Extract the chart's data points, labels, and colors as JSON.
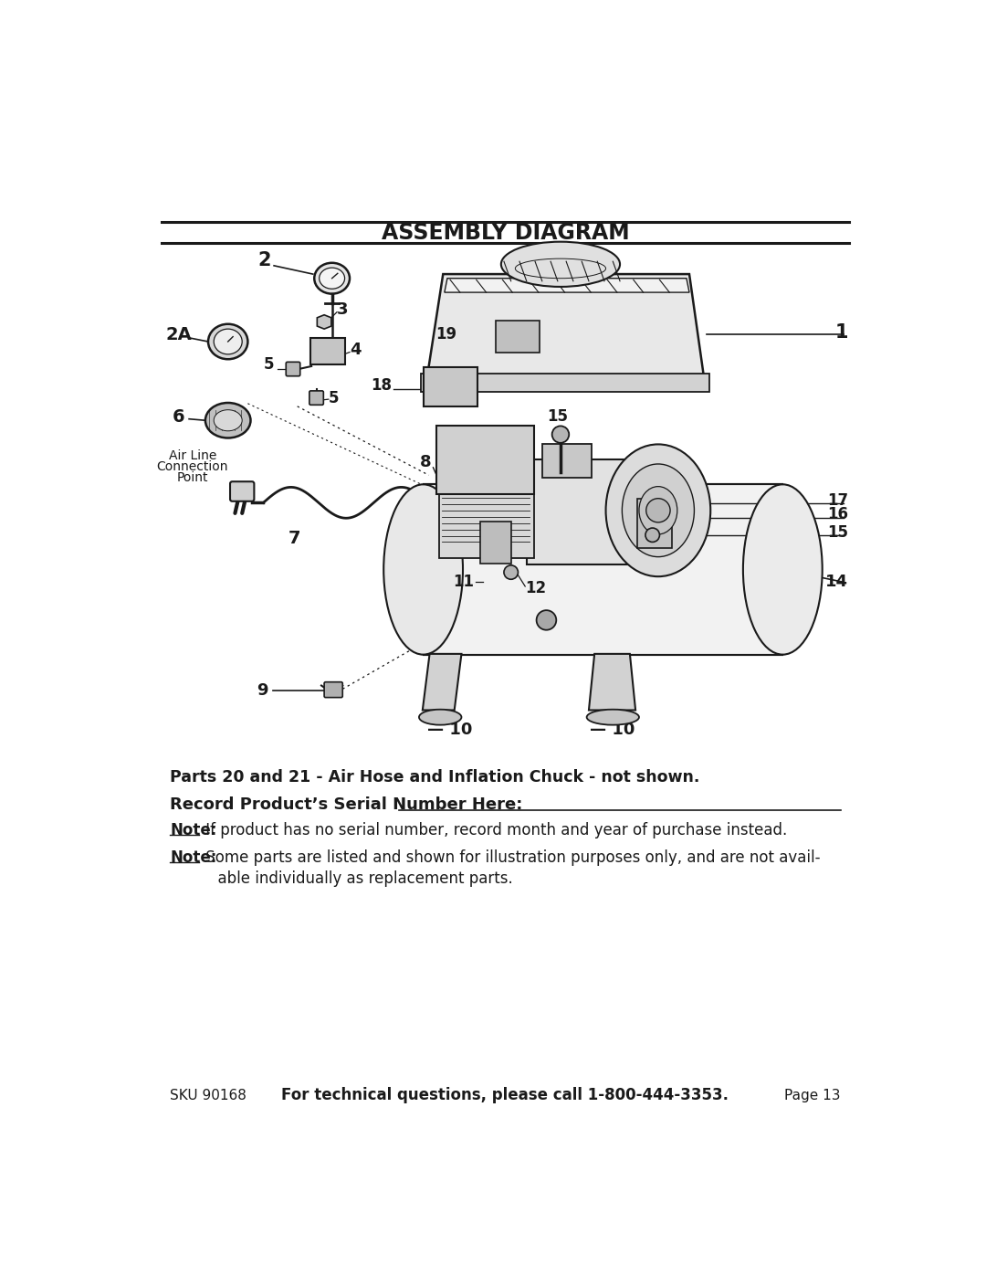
{
  "title": "ASSEMBLY DIAGRAM",
  "bg_color": "#ffffff",
  "tc": "#1a1a1a",
  "footer_sku": "SKU 90168",
  "footer_call": "For technical questions, please call 1-800-444-3353.",
  "footer_page": "Page 13",
  "note1": "Parts 20 and 21 - Air Hose and Inflation Chuck - not shown.",
  "note2_bold": "Record Product’s Serial Number Here:",
  "note3_label": "Note:",
  "note3_body": " If product has no serial number, record month and year of purchase instead.",
  "note4_label": "Note:",
  "note4_body": " Some parts are listed and shown for illustration purposes only, and are not avail-",
  "note4_body2": "          able individually as replacement parts.",
  "fig_width": 10.8,
  "fig_height": 13.97,
  "dpi": 100
}
